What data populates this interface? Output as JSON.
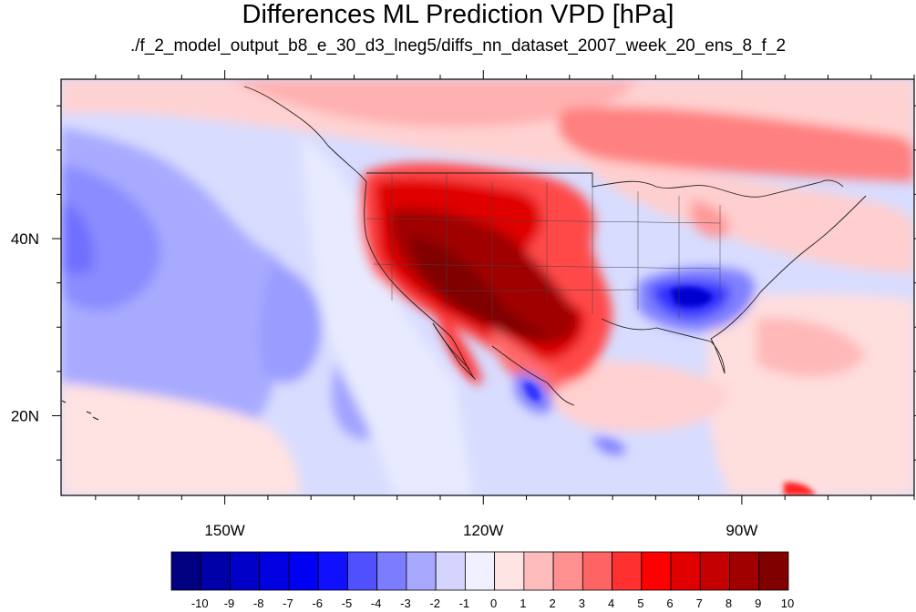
{
  "title": "Differences ML Prediction VPD [hPa]",
  "subtitle": "./f_2_model_output_b8_e_30_d3_lneg5/diffs_nn_dataset_2007_week_20_ens_8_f_2",
  "map": {
    "type": "contour-map",
    "lon_range": [
      -169,
      -70
    ],
    "lat_range": [
      11,
      58
    ],
    "lon_ticks": [
      {
        "value": -150,
        "label": "150W"
      },
      {
        "value": -120,
        "label": "120W"
      },
      {
        "value": -90,
        "label": "90W"
      }
    ],
    "lat_ticks": [
      {
        "value": 40,
        "label": "40N"
      },
      {
        "value": 20,
        "label": "20N"
      }
    ]
  },
  "colorbar": {
    "labels": [
      "-10",
      "-9",
      "-8",
      "-7",
      "-6",
      "-5",
      "-4",
      "-3",
      "-2",
      "-1",
      "0",
      "1",
      "2",
      "3",
      "4",
      "5",
      "6",
      "7",
      "8",
      "9",
      "10"
    ],
    "colors": [
      "#000080",
      "#0000a8",
      "#0000c8",
      "#0000e0",
      "#0000f4",
      "#1010ff",
      "#5050ff",
      "#7c7cff",
      "#a8a8ff",
      "#d4d4ff",
      "#f0f0ff",
      "#ffe4e4",
      "#ffbcbc",
      "#ff9090",
      "#ff6464",
      "#ff3030",
      "#ff0000",
      "#e00000",
      "#c40000",
      "#a00000",
      "#800000"
    ]
  }
}
